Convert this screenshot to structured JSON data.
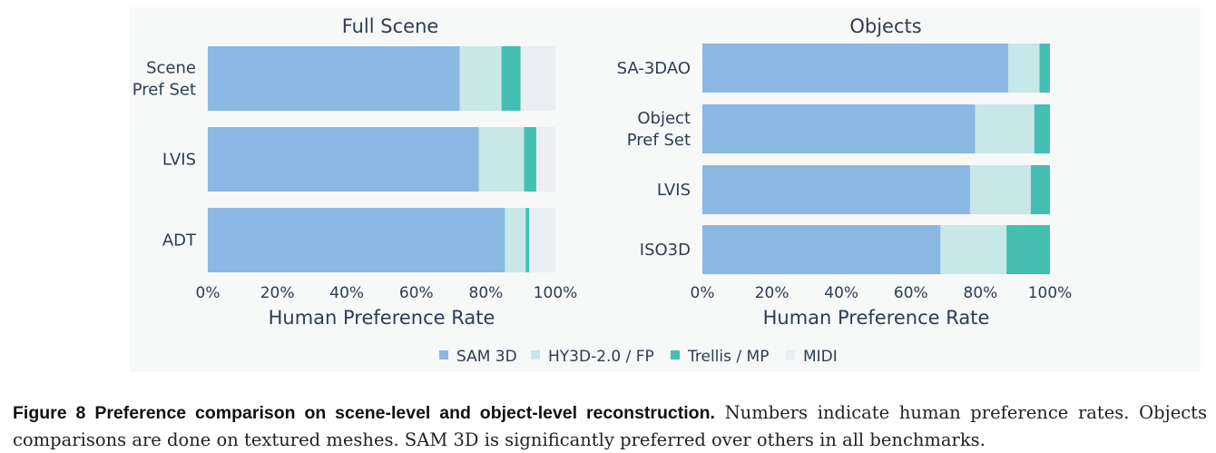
{
  "colors": {
    "background": "#ffffff",
    "panel": "#f7f8f8",
    "text": "#2d3d52",
    "series": [
      "#8ab8e2",
      "#c8e7e8",
      "#44bfb1",
      "#e8eef2"
    ]
  },
  "legend": {
    "items": [
      "SAM 3D",
      "HY3D-2.0 / FP",
      "Trellis / MP",
      "MIDI"
    ]
  },
  "chart_data": [
    {
      "type": "bar",
      "orientation": "horizontal",
      "stacked": true,
      "title": "Full Scene",
      "xlabel": "Human Preference Rate",
      "ylabel": "",
      "xlim": [
        0,
        100
      ],
      "x_ticks": [
        "0%",
        "20%",
        "40%",
        "60%",
        "80%",
        "100%"
      ],
      "categories": [
        [
          "Scene",
          "Pref Set"
        ],
        [
          "LVIS"
        ],
        [
          "ADT"
        ]
      ],
      "series": [
        {
          "name": "SAM 3D",
          "values": [
            72.5,
            78,
            85.5
          ]
        },
        {
          "name": "HY3D-2.0 / FP",
          "values": [
            12,
            13,
            6
          ]
        },
        {
          "name": "Trellis / MP",
          "values": [
            5.5,
            3.5,
            1
          ]
        },
        {
          "name": "MIDI",
          "values": [
            10,
            5.5,
            7.5
          ]
        }
      ]
    },
    {
      "type": "bar",
      "orientation": "horizontal",
      "stacked": true,
      "title": "Objects",
      "xlabel": "Human Preference Rate",
      "ylabel": "",
      "xlim": [
        0,
        100
      ],
      "x_ticks": [
        "0%",
        "20%",
        "40%",
        "60%",
        "80%",
        "100%"
      ],
      "categories": [
        [
          "SA-3DAO"
        ],
        [
          "Object",
          "Pref Set"
        ],
        [
          "LVIS"
        ],
        [
          "ISO3D"
        ]
      ],
      "series": [
        {
          "name": "SAM 3D",
          "values": [
            88,
            78.5,
            77,
            68.5
          ]
        },
        {
          "name": "HY3D-2.0 / FP",
          "values": [
            9,
            17,
            17.5,
            19
          ]
        },
        {
          "name": "Trellis / MP",
          "values": [
            3,
            4.5,
            5.5,
            12.5
          ]
        }
      ]
    }
  ],
  "caption": {
    "label": "Figure 8",
    "title": "Preference comparison on scene-level and object-level reconstruction.",
    "body": "Numbers indicate human preference rates. Objects comparisons are done on textured meshes. SAM 3D is significantly preferred over others in all benchmarks."
  }
}
